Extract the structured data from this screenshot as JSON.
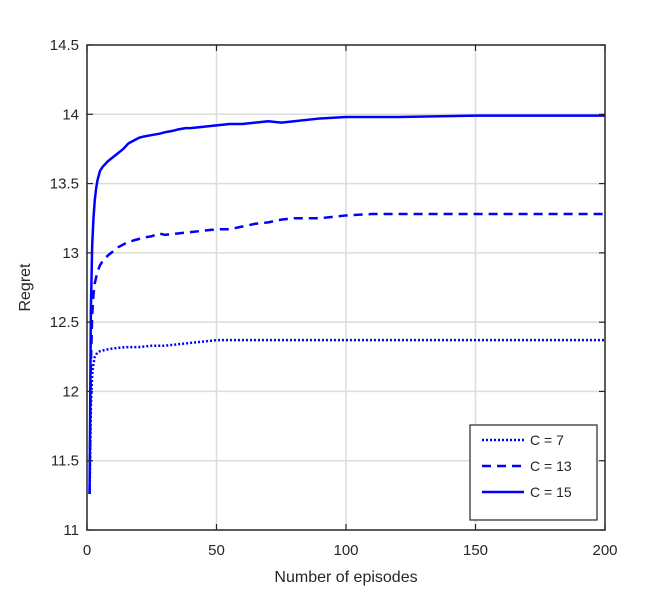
{
  "chart_data": {
    "type": "line",
    "title": "",
    "xlabel": "Number of episodes",
    "ylabel": "Regret",
    "xlim": [
      0,
      200
    ],
    "ylim": [
      11,
      14.5
    ],
    "xticks": [
      0,
      50,
      100,
      150,
      200
    ],
    "yticks": [
      11,
      11.5,
      12,
      12.5,
      13,
      13.5,
      14,
      14.5
    ],
    "grid": true,
    "legend_position": "bottom-right",
    "series": [
      {
        "name": "C = 7",
        "line_style": "dotted",
        "color": "#0000ff",
        "x": [
          1,
          1.5,
          2,
          2.5,
          3,
          4,
          5,
          7,
          10,
          15,
          20,
          25,
          30,
          35,
          40,
          45,
          50,
          60,
          80,
          100,
          150,
          200
        ],
        "y": [
          11.26,
          11.9,
          12.12,
          12.2,
          12.25,
          12.28,
          12.29,
          12.3,
          12.31,
          12.32,
          12.32,
          12.33,
          12.33,
          12.34,
          12.35,
          12.36,
          12.37,
          12.37,
          12.37,
          12.37,
          12.37,
          12.37
        ]
      },
      {
        "name": "C = 13",
        "line_style": "dashed",
        "color": "#0000ff",
        "x": [
          1,
          1.5,
          2,
          2.5,
          3,
          4,
          5,
          6,
          8,
          10,
          12,
          15,
          18,
          20,
          22,
          25,
          28,
          30,
          35,
          40,
          45,
          50,
          55,
          60,
          65,
          70,
          75,
          80,
          90,
          100,
          110,
          150,
          200
        ],
        "y": [
          11.26,
          12.2,
          12.55,
          12.7,
          12.78,
          12.86,
          12.91,
          12.94,
          12.98,
          13.01,
          13.04,
          13.07,
          13.09,
          13.1,
          13.11,
          13.12,
          13.14,
          13.13,
          13.14,
          13.15,
          13.16,
          13.17,
          13.17,
          13.19,
          13.21,
          13.22,
          13.24,
          13.25,
          13.25,
          13.27,
          13.28,
          13.28,
          13.28
        ]
      },
      {
        "name": "C = 15",
        "line_style": "solid",
        "color": "#0000ff",
        "x": [
          1,
          1.5,
          2,
          2.5,
          3,
          3.5,
          4,
          5,
          6,
          7,
          8,
          10,
          12,
          14,
          16,
          18,
          20,
          22,
          25,
          28,
          30,
          33,
          35,
          38,
          40,
          45,
          50,
          55,
          60,
          65,
          70,
          75,
          80,
          90,
          100,
          120,
          150,
          200
        ],
        "y": [
          11.26,
          12.6,
          13.05,
          13.25,
          13.38,
          13.46,
          13.52,
          13.59,
          13.62,
          13.64,
          13.66,
          13.69,
          13.72,
          13.75,
          13.79,
          13.81,
          13.83,
          13.84,
          13.85,
          13.86,
          13.87,
          13.88,
          13.89,
          13.9,
          13.9,
          13.91,
          13.92,
          13.93,
          13.93,
          13.94,
          13.95,
          13.94,
          13.95,
          13.97,
          13.98,
          13.98,
          13.99,
          13.99
        ]
      }
    ]
  }
}
